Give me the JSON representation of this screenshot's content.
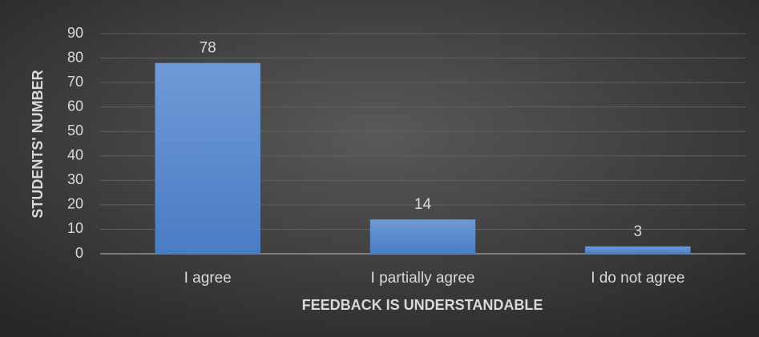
{
  "chart_data": {
    "type": "bar",
    "x_label": "FEEDBACK IS UNDERSTANDABLE",
    "y_label": "STUDENTS' NUMBER",
    "categories": [
      "I agree",
      "I partially agree",
      "I do not agree"
    ],
    "values": [
      78,
      14,
      3
    ],
    "color": "#5b8bd0",
    "ylim": [
      0,
      90
    ],
    "yticks": [
      0,
      10,
      20,
      30,
      40,
      50,
      60,
      70,
      80,
      90
    ],
    "grid": true
  }
}
